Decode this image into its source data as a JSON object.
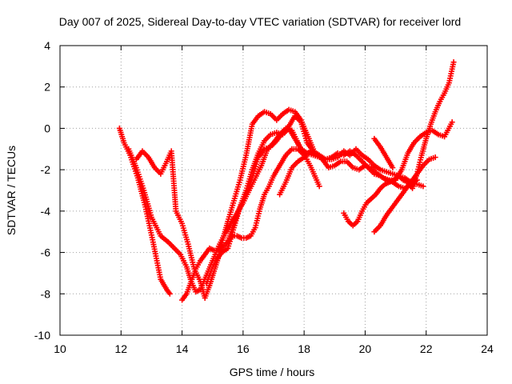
{
  "chart_data": {
    "type": "scatter",
    "title": "Day 007 of 2025, Sidereal Day-to-day VTEC variation (SDTVAR) for receiver lord",
    "xlabel": "GPS time / hours",
    "ylabel": "SDTVAR / TECUs",
    "xlim": [
      10,
      24
    ],
    "ylim": [
      -10,
      4
    ],
    "xticks": [
      10,
      12,
      14,
      16,
      18,
      20,
      22,
      24
    ],
    "yticks": [
      -10,
      -8,
      -6,
      -4,
      -2,
      0,
      2,
      4
    ],
    "grid": true,
    "marker": "+",
    "color": "#ff0000",
    "series": [
      {
        "x": [
          11.95,
          12.1,
          12.3,
          12.55,
          12.8,
          13.05,
          13.3,
          13.5,
          13.6
        ],
        "y": [
          0.0,
          -0.7,
          -1.3,
          -2.4,
          -3.8,
          -5.5,
          -7.3,
          -7.8,
          -8.0
        ]
      },
      {
        "x": [
          12.25,
          12.5,
          12.75,
          13.0,
          13.3,
          13.55,
          13.75,
          13.95,
          14.15,
          14.3,
          14.45,
          14.6,
          14.8,
          15.0,
          15.2,
          15.4,
          15.6,
          15.8,
          16.0,
          16.2,
          16.4,
          16.6,
          16.8,
          17.0,
          17.2,
          17.4,
          17.6,
          17.9,
          18.2,
          18.5
        ],
        "y": [
          -1.0,
          -1.9,
          -3.0,
          -4.3,
          -5.2,
          -5.5,
          -5.8,
          -6.1,
          -6.7,
          -7.4,
          -7.9,
          -7.8,
          -7.1,
          -6.4,
          -5.7,
          -5.1,
          -4.6,
          -4.1,
          -3.6,
          -3.0,
          -2.4,
          -1.8,
          -1.0,
          -0.7,
          -0.3,
          0.0,
          -0.1,
          -1.0,
          -1.8,
          -2.8
        ]
      },
      {
        "x": [
          12.5,
          12.7,
          12.9,
          13.1,
          13.3,
          13.5,
          13.65,
          13.8,
          14.0,
          14.2,
          14.4,
          14.6,
          14.75,
          14.9,
          15.05,
          15.2,
          15.35,
          15.5,
          15.7,
          15.9,
          16.1,
          16.3,
          16.5,
          16.7,
          16.9,
          17.1,
          17.3,
          17.5,
          17.7,
          17.9,
          18.1,
          18.3
        ],
        "y": [
          -1.5,
          -1.1,
          -1.4,
          -1.9,
          -2.2,
          -1.6,
          -1.1,
          -4.0,
          -4.6,
          -5.6,
          -6.8,
          -7.4,
          -8.2,
          -7.6,
          -6.9,
          -6.2,
          -5.3,
          -4.5,
          -3.5,
          -2.5,
          -1.3,
          0.2,
          0.6,
          0.8,
          0.7,
          0.4,
          0.7,
          0.9,
          0.8,
          0.4,
          -0.3,
          -1.0
        ]
      },
      {
        "x": [
          14.0,
          14.15,
          14.3,
          14.45,
          14.6,
          14.75,
          14.9,
          15.05,
          15.2,
          15.35,
          15.5,
          15.65,
          15.8,
          15.95,
          16.1,
          16.25,
          16.4,
          16.55,
          16.7,
          16.85,
          17.0,
          17.2,
          17.4,
          17.6,
          17.8,
          18.0
        ],
        "y": [
          -8.3,
          -8.0,
          -7.4,
          -6.8,
          -6.4,
          -6.1,
          -5.8,
          -5.9,
          -5.9,
          -5.7,
          -5.5,
          -5.2,
          -5.2,
          -5.3,
          -5.3,
          -5.2,
          -4.8,
          -3.9,
          -3.2,
          -2.8,
          -2.3,
          -1.8,
          -1.3,
          -1.0,
          -1.0,
          -1.3
        ]
      },
      {
        "x": [
          14.8,
          14.95,
          15.1,
          15.3,
          15.5,
          15.7,
          15.9,
          16.1,
          16.3,
          16.5,
          16.7,
          16.9,
          17.1,
          17.3,
          17.5,
          17.7,
          17.9,
          18.1,
          18.3,
          18.5,
          18.7,
          18.9,
          19.1,
          19.3,
          19.5,
          19.7,
          19.9,
          20.1,
          20.3,
          20.5,
          20.7,
          20.9,
          21.1,
          21.3,
          21.5,
          21.7
        ],
        "y": [
          -7.5,
          -6.9,
          -6.4,
          -6.0,
          -5.8,
          -4.8,
          -3.8,
          -3.0,
          -2.0,
          -1.2,
          -0.6,
          -0.3,
          -0.2,
          -0.3,
          0.0,
          -0.5,
          -1.0,
          -1.2,
          -1.3,
          -1.4,
          -1.5,
          -1.4,
          -1.2,
          -1.3,
          -1.1,
          -1.3,
          -1.6,
          -1.9,
          -2.2,
          -2.3,
          -2.5,
          -2.6,
          -2.8,
          -2.9,
          -2.7,
          -2.5
        ]
      },
      {
        "x": [
          15.5,
          15.7,
          15.9,
          16.1,
          16.3,
          16.5,
          16.7,
          16.9,
          17.1,
          17.3,
          17.5,
          17.7,
          17.9,
          18.1,
          18.3,
          18.5,
          18.7,
          18.9,
          19.1,
          19.3,
          19.5,
          19.7,
          19.9,
          20.1,
          20.3,
          20.5,
          20.7,
          20.9,
          21.1,
          21.3,
          21.5,
          21.7,
          21.9
        ],
        "y": [
          -5.5,
          -4.6,
          -3.8,
          -3.2,
          -2.4,
          -1.4,
          -1.0,
          -0.9,
          -0.6,
          -0.2,
          0.1,
          0.6,
          0.3,
          -0.7,
          -1.1,
          -1.3,
          -1.5,
          -1.5,
          -1.4,
          -1.1,
          -1.3,
          -1.0,
          -1.3,
          -1.5,
          -1.8,
          -2.0,
          -2.1,
          -2.2,
          -2.3,
          -2.4,
          -2.6,
          -2.7,
          -2.8
        ]
      },
      {
        "x": [
          17.2,
          17.4,
          17.6,
          17.8,
          18.0,
          18.2,
          18.4,
          18.6,
          18.8,
          19.0,
          19.2,
          19.4,
          19.6,
          19.8,
          20.0,
          20.2,
          20.4,
          20.6,
          20.8,
          21.0,
          21.2,
          21.4,
          21.6,
          21.8,
          22.0,
          22.2,
          22.4,
          22.6,
          22.85
        ],
        "y": [
          -3.2,
          -2.6,
          -1.9,
          -1.6,
          -1.4,
          -1.1,
          -1.2,
          -1.5,
          -1.9,
          -1.8,
          -1.6,
          -1.6,
          -1.9,
          -2.0,
          -1.8,
          -1.9,
          -2.2,
          -2.4,
          -2.5,
          -2.5,
          -2.0,
          -1.2,
          -0.7,
          -0.4,
          -0.2,
          -0.1,
          -0.3,
          -0.4,
          0.3
        ]
      },
      {
        "x": [
          19.3,
          19.45,
          19.6,
          19.75,
          19.9,
          20.05,
          20.2,
          20.35,
          20.5,
          20.65,
          20.8,
          20.95,
          21.1,
          21.25,
          21.4,
          21.55,
          21.7,
          21.85,
          22.0,
          22.15,
          22.3,
          22.45,
          22.6,
          22.75,
          22.9
        ],
        "y": [
          -4.1,
          -4.5,
          -4.7,
          -4.5,
          -4.0,
          -3.6,
          -3.4,
          -3.2,
          -2.9,
          -2.7,
          -2.6,
          -2.5,
          -2.3,
          -2.5,
          -2.6,
          -2.9,
          -2.2,
          -1.3,
          -0.5,
          0.2,
          0.8,
          1.3,
          1.7,
          2.2,
          3.2
        ]
      },
      {
        "x": [
          20.3,
          20.5,
          20.7,
          20.9,
          21.1,
          21.3,
          21.5,
          21.7,
          21.9,
          22.1,
          22.3
        ],
        "y": [
          -5.0,
          -4.7,
          -4.2,
          -3.8,
          -3.4,
          -3.0,
          -2.6,
          -2.2,
          -1.8,
          -1.5,
          -1.4
        ]
      },
      {
        "x": [
          20.3,
          20.5,
          20.7,
          20.9
        ],
        "y": [
          -0.5,
          -0.9,
          -1.4,
          -1.9
        ]
      }
    ]
  }
}
